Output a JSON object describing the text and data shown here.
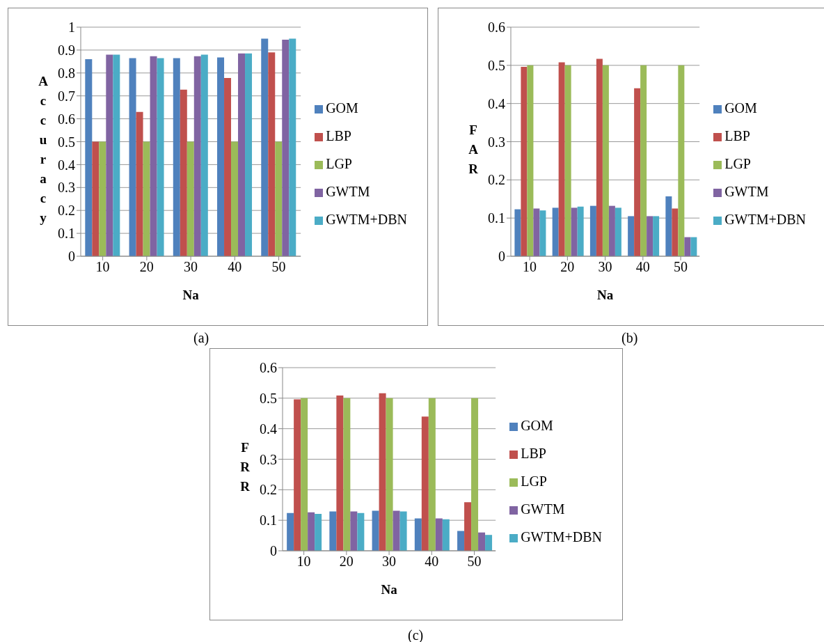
{
  "chart_data": [
    {
      "type": "bar",
      "xlabel": "Na",
      "ylabel": "Accuracy",
      "categories": [
        "10",
        "20",
        "30",
        "40",
        "50"
      ],
      "ylim": [
        0,
        1
      ],
      "yticks": [
        0,
        0.1,
        0.2,
        0.3,
        0.4,
        0.5,
        0.6,
        0.7,
        0.8,
        0.9,
        1
      ],
      "grid": "y",
      "legend": "right",
      "annotations": [
        "(a)"
      ],
      "series": [
        {
          "name": "GOM",
          "color": "#4f81bd",
          "values": [
            0.86,
            0.865,
            0.865,
            0.868,
            0.95
          ]
        },
        {
          "name": "LBP",
          "color": "#c0504d",
          "values": [
            0.5,
            0.63,
            0.727,
            0.778,
            0.89
          ]
        },
        {
          "name": "LGP",
          "color": "#9bbb59",
          "values": [
            0.5,
            0.5,
            0.5,
            0.5,
            0.5
          ]
        },
        {
          "name": "GWTM",
          "color": "#8064a2",
          "values": [
            0.88,
            0.873,
            0.873,
            0.885,
            0.945
          ]
        },
        {
          "name": "GWTM+DBN",
          "color": "#4bacc6",
          "values": [
            0.88,
            0.865,
            0.88,
            0.885,
            0.95
          ]
        }
      ]
    },
    {
      "type": "bar",
      "xlabel": "Na",
      "ylabel": "FAR",
      "categories": [
        "10",
        "20",
        "30",
        "40",
        "50"
      ],
      "ylim": [
        0,
        0.6
      ],
      "yticks": [
        0,
        0.1,
        0.2,
        0.3,
        0.4,
        0.5,
        0.6
      ],
      "grid": "y",
      "legend": "right",
      "annotations": [
        "(b)"
      ],
      "series": [
        {
          "name": "GOM",
          "color": "#4f81bd",
          "values": [
            0.123,
            0.127,
            0.132,
            0.105,
            0.157
          ]
        },
        {
          "name": "LBP",
          "color": "#c0504d",
          "values": [
            0.496,
            0.508,
            0.517,
            0.44,
            0.125
          ]
        },
        {
          "name": "LGP",
          "color": "#9bbb59",
          "values": [
            0.5,
            0.5,
            0.5,
            0.5,
            0.5
          ]
        },
        {
          "name": "GWTM",
          "color": "#8064a2",
          "values": [
            0.125,
            0.127,
            0.132,
            0.105,
            0.05
          ]
        },
        {
          "name": "GWTM+DBN",
          "color": "#4bacc6",
          "values": [
            0.12,
            0.13,
            0.127,
            0.105,
            0.05
          ]
        }
      ]
    },
    {
      "type": "bar",
      "xlabel": "Na",
      "ylabel": "FRR",
      "categories": [
        "10",
        "20",
        "30",
        "40",
        "50"
      ],
      "ylim": [
        0,
        0.6
      ],
      "yticks": [
        0,
        0.1,
        0.2,
        0.3,
        0.4,
        0.5,
        0.6
      ],
      "grid": "y",
      "legend": "right",
      "annotations": [
        "(c)"
      ],
      "series": [
        {
          "name": "GOM",
          "color": "#4f81bd",
          "values": [
            0.124,
            0.129,
            0.131,
            0.106,
            0.065
          ]
        },
        {
          "name": "LBP",
          "color": "#c0504d",
          "values": [
            0.496,
            0.509,
            0.516,
            0.44,
            0.159
          ]
        },
        {
          "name": "LGP",
          "color": "#9bbb59",
          "values": [
            0.5,
            0.5,
            0.5,
            0.5,
            0.5
          ]
        },
        {
          "name": "GWTM",
          "color": "#8064a2",
          "values": [
            0.126,
            0.129,
            0.131,
            0.106,
            0.06
          ]
        },
        {
          "name": "GWTM+DBN",
          "color": "#4bacc6",
          "values": [
            0.121,
            0.124,
            0.129,
            0.103,
            0.052
          ]
        }
      ]
    }
  ]
}
